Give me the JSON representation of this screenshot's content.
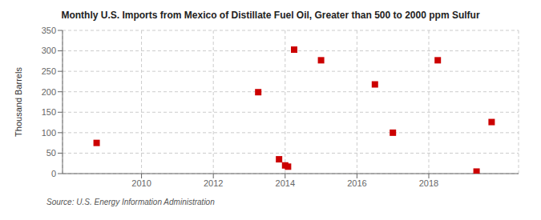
{
  "chart_data": {
    "type": "scatter",
    "title": "Monthly U.S. Imports from Mexico of Distillate Fuel Oil, Greater than 500 to 2000 ppm Sulfur",
    "ylabel": "Thousand Barrels",
    "annotations": [
      "Source: U.S. Energy Information Administration"
    ],
    "x": [
      2008.75,
      2013.25,
      2013.83,
      2014.0,
      2014.08,
      2014.25,
      2015.0,
      2016.5,
      2017.0,
      2018.25,
      2019.33,
      2019.75
    ],
    "values": [
      75,
      199,
      35,
      20,
      17,
      303,
      277,
      218,
      100,
      277,
      5,
      126
    ],
    "color": "#cc0000",
    "marker": "square",
    "xlim": [
      2007.8,
      2020.5
    ],
    "xticks": [
      2010,
      2012,
      2014,
      2016,
      2018
    ],
    "ylim": [
      0,
      350
    ],
    "yticks": [
      0,
      50,
      100,
      150,
      200,
      250,
      300,
      350
    ],
    "grid": true
  }
}
